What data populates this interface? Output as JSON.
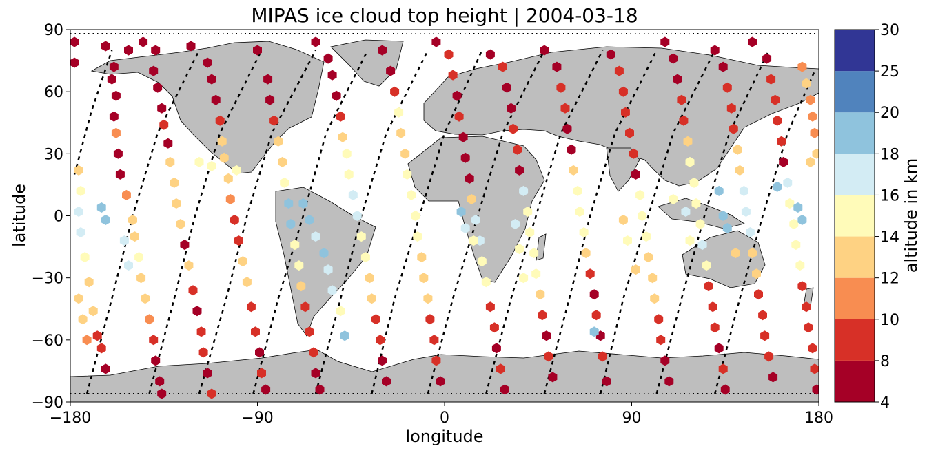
{
  "chart_data": {
    "type": "scatter",
    "title": "MIPAS ice cloud top height | 2004-03-18",
    "xlabel": "longitude",
    "ylabel": "latitude",
    "xlim": [
      -180,
      180
    ],
    "ylim": [
      -90,
      90
    ],
    "xticks": [
      -180,
      -90,
      0,
      90,
      180
    ],
    "xtick_labels": [
      "−180",
      "−90",
      "0",
      "90",
      "180"
    ],
    "yticks": [
      -90,
      -60,
      -30,
      0,
      30,
      60,
      90
    ],
    "ytick_labels": [
      "−90",
      "−60",
      "−30",
      "0",
      "30",
      "60",
      "90"
    ],
    "grid": false,
    "colorbar": {
      "label": "altitude in km",
      "boundaries": [
        4,
        8,
        10,
        12,
        14,
        16,
        18,
        20,
        25,
        30
      ],
      "tick_labels": [
        "4",
        "8",
        "10",
        "12",
        "14",
        "16",
        "18",
        "20",
        "25",
        "30"
      ],
      "colors": [
        "#a50026",
        "#d73027",
        "#f88d51",
        "#fed283",
        "#fffbb9",
        "#d3ecf4",
        "#8fc3dd",
        "#5083bd",
        "#313695"
      ]
    },
    "map_colors": {
      "land": "#bebebe",
      "coast": "#000000"
    },
    "orbit_tracks": [
      [
        [
          -172,
          -86
        ],
        [
          -160,
          -40
        ],
        [
          -150,
          0
        ],
        [
          -138,
          40
        ],
        [
          -118,
          80
        ]
      ],
      [
        [
          -142,
          -86
        ],
        [
          -130,
          -40
        ],
        [
          -120,
          0
        ],
        [
          -108,
          40
        ],
        [
          -88,
          80
        ]
      ],
      [
        [
          -118,
          -86
        ],
        [
          -105,
          -40
        ],
        [
          -95,
          0
        ],
        [
          -83,
          40
        ],
        [
          -62,
          80
        ]
      ],
      [
        [
          -92,
          -86
        ],
        [
          -80,
          -40
        ],
        [
          -68,
          0
        ],
        [
          -57,
          40
        ],
        [
          -37,
          80
        ]
      ],
      [
        [
          -62,
          -86
        ],
        [
          -50,
          -40
        ],
        [
          -40,
          0
        ],
        [
          -28,
          40
        ],
        [
          -8,
          80
        ]
      ],
      [
        [
          -35,
          -86
        ],
        [
          -24,
          -40
        ],
        [
          -12,
          0
        ],
        [
          0,
          40
        ],
        [
          18,
          80
        ]
      ],
      [
        [
          -8,
          -86
        ],
        [
          4,
          -40
        ],
        [
          16,
          0
        ],
        [
          28,
          40
        ],
        [
          48,
          80
        ]
      ],
      [
        [
          20,
          -86
        ],
        [
          32,
          -40
        ],
        [
          44,
          0
        ],
        [
          56,
          40
        ],
        [
          76,
          80
        ]
      ],
      [
        [
          48,
          -86
        ],
        [
          60,
          -40
        ],
        [
          70,
          0
        ],
        [
          82,
          40
        ],
        [
          102,
          80
        ]
      ],
      [
        [
          75,
          -86
        ],
        [
          86,
          -40
        ],
        [
          98,
          0
        ],
        [
          110,
          40
        ],
        [
          130,
          80
        ]
      ],
      [
        [
          102,
          -86
        ],
        [
          114,
          -40
        ],
        [
          125,
          0
        ],
        [
          137,
          40
        ],
        [
          156,
          80
        ]
      ],
      [
        [
          130,
          -86
        ],
        [
          142,
          -40
        ],
        [
          153,
          0
        ],
        [
          165,
          40
        ],
        [
          178,
          70
        ]
      ],
      [
        [
          -178,
          20
        ],
        [
          -170,
          50
        ],
        [
          -160,
          80
        ]
      ]
    ],
    "points": [
      [
        -178,
        74,
        7
      ],
      [
        -178,
        84,
        7
      ],
      [
        -176,
        22,
        12
      ],
      [
        -175,
        12,
        15
      ],
      [
        -176,
        2,
        17
      ],
      [
        -175,
        -8,
        17
      ],
      [
        -173,
        -20,
        15
      ],
      [
        -171,
        -32,
        13
      ],
      [
        -169,
        -46,
        13
      ],
      [
        -167,
        -58,
        9
      ],
      [
        -165,
        -64,
        9
      ],
      [
        -163,
        -74,
        7
      ],
      [
        -176,
        -40,
        12
      ],
      [
        -174,
        -50,
        13
      ],
      [
        -172,
        -60,
        10
      ],
      [
        -160,
        66,
        7
      ],
      [
        -158,
        58,
        7
      ],
      [
        -159,
        48,
        7
      ],
      [
        -158,
        40,
        11
      ],
      [
        -157,
        30,
        7
      ],
      [
        -156,
        20,
        7
      ],
      [
        -153,
        10,
        11
      ],
      [
        -150,
        -2,
        13
      ],
      [
        -149,
        -10,
        13
      ],
      [
        -147,
        -20,
        15
      ],
      [
        -146,
        -30,
        12
      ],
      [
        -144,
        -40,
        12
      ],
      [
        -142,
        -50,
        10
      ],
      [
        -140,
        -60,
        9
      ],
      [
        -139,
        -70,
        7
      ],
      [
        -137,
        -80,
        7
      ],
      [
        -136,
        -86,
        7
      ],
      [
        -165,
        4,
        18
      ],
      [
        -163,
        -2,
        18
      ],
      [
        -154,
        -12,
        17
      ],
      [
        -152,
        -24,
        16
      ],
      [
        -163,
        82,
        7
      ],
      [
        -159,
        72,
        7
      ],
      [
        -140,
        70,
        7
      ],
      [
        -138,
        62,
        7
      ],
      [
        -136,
        52,
        7
      ],
      [
        -135,
        44,
        9
      ],
      [
        -133,
        35,
        7
      ],
      [
        -132,
        26,
        12
      ],
      [
        -130,
        16,
        13
      ],
      [
        -129,
        6,
        13
      ],
      [
        -127,
        -4,
        12
      ],
      [
        -125,
        -14,
        7
      ],
      [
        -123,
        -24,
        12
      ],
      [
        -121,
        -36,
        9
      ],
      [
        -119,
        -46,
        7
      ],
      [
        -117,
        -56,
        9
      ],
      [
        -116,
        -66,
        9
      ],
      [
        -114,
        -76,
        7
      ],
      [
        -112,
        -86,
        9
      ],
      [
        -152,
        80,
        7
      ],
      [
        -145,
        84,
        7
      ],
      [
        -139,
        80,
        7
      ],
      [
        -122,
        82,
        7
      ],
      [
        -114,
        74,
        7
      ],
      [
        -112,
        66,
        7
      ],
      [
        -110,
        56,
        7
      ],
      [
        -108,
        46,
        9
      ],
      [
        -107,
        36,
        12
      ],
      [
        -106,
        28,
        13
      ],
      [
        -104,
        18,
        13
      ],
      [
        -103,
        8,
        11
      ],
      [
        -101,
        -2,
        9
      ],
      [
        -99,
        -12,
        9
      ],
      [
        -97,
        -22,
        12
      ],
      [
        -95,
        -32,
        12
      ],
      [
        -93,
        -44,
        9
      ],
      [
        -91,
        -56,
        9
      ],
      [
        -89,
        -66,
        7
      ],
      [
        -88,
        -76,
        9
      ],
      [
        -86,
        -84,
        7
      ],
      [
        -118,
        26,
        15
      ],
      [
        -112,
        24,
        14
      ],
      [
        -100,
        22,
        14
      ],
      [
        -90,
        80,
        7
      ],
      [
        -85,
        66,
        7
      ],
      [
        -84,
        56,
        7
      ],
      [
        -82,
        46,
        9
      ],
      [
        -80,
        36,
        12
      ],
      [
        -78,
        26,
        12
      ],
      [
        -77,
        16,
        15
      ],
      [
        -75,
        6,
        18
      ],
      [
        -74,
        -4,
        18
      ],
      [
        -72,
        -14,
        15
      ],
      [
        -70,
        -24,
        14
      ],
      [
        -69,
        -34,
        12
      ],
      [
        -67,
        -44,
        9
      ],
      [
        -65,
        -56,
        9
      ],
      [
        -63,
        -66,
        9
      ],
      [
        -62,
        -76,
        7
      ],
      [
        -60,
        -84,
        7
      ],
      [
        -68,
        6,
        18
      ],
      [
        -65,
        -2,
        18
      ],
      [
        -62,
        -10,
        17
      ],
      [
        -58,
        -18,
        18
      ],
      [
        -56,
        -26,
        17
      ],
      [
        -54,
        -36,
        16
      ],
      [
        -50,
        -46,
        14
      ],
      [
        -48,
        -58,
        18
      ],
      [
        -62,
        84,
        7
      ],
      [
        -56,
        76,
        7
      ],
      [
        -54,
        68,
        7
      ],
      [
        -52,
        58,
        7
      ],
      [
        -50,
        48,
        9
      ],
      [
        -49,
        38,
        12
      ],
      [
        -47,
        30,
        14
      ],
      [
        -46,
        20,
        15
      ],
      [
        -44,
        10,
        16
      ],
      [
        -42,
        0,
        16
      ],
      [
        -40,
        -10,
        15
      ],
      [
        -38,
        -20,
        15
      ],
      [
        -36,
        -30,
        12
      ],
      [
        -35,
        -40,
        12
      ],
      [
        -33,
        -50,
        9
      ],
      [
        -31,
        -60,
        9
      ],
      [
        -30,
        -70,
        7
      ],
      [
        -28,
        -80,
        7
      ],
      [
        -30,
        80,
        7
      ],
      [
        -26,
        70,
        7
      ],
      [
        -24,
        60,
        9
      ],
      [
        -22,
        50,
        14
      ],
      [
        -21,
        40,
        13
      ],
      [
        -19,
        30,
        13
      ],
      [
        -18,
        20,
        14
      ],
      [
        -16,
        10,
        15
      ],
      [
        -14,
        0,
        15
      ],
      [
        -13,
        -10,
        14
      ],
      [
        -11,
        -20,
        13
      ],
      [
        -10,
        -30,
        13
      ],
      [
        -8,
        -40,
        12
      ],
      [
        -7,
        -50,
        9
      ],
      [
        -5,
        -60,
        9
      ],
      [
        -4,
        -70,
        9
      ],
      [
        -2,
        -80,
        7
      ],
      [
        -4,
        84,
        7
      ],
      [
        2,
        78,
        9
      ],
      [
        4,
        68,
        9
      ],
      [
        6,
        58,
        7
      ],
      [
        7,
        48,
        9
      ],
      [
        9,
        38,
        7
      ],
      [
        10,
        28,
        7
      ],
      [
        12,
        18,
        7
      ],
      [
        13,
        8,
        12
      ],
      [
        15,
        -2,
        16
      ],
      [
        17,
        -12,
        16
      ],
      [
        18,
        -22,
        14
      ],
      [
        20,
        -32,
        14
      ],
      [
        22,
        -44,
        9
      ],
      [
        24,
        -54,
        9
      ],
      [
        25,
        -64,
        7
      ],
      [
        27,
        -74,
        9
      ],
      [
        29,
        -84,
        7
      ],
      [
        8,
        2,
        18
      ],
      [
        10,
        -6,
        17
      ],
      [
        14,
        -12,
        15
      ],
      [
        22,
        78,
        7
      ],
      [
        28,
        72,
        9
      ],
      [
        30,
        62,
        7
      ],
      [
        32,
        52,
        7
      ],
      [
        33,
        42,
        9
      ],
      [
        35,
        32,
        9
      ],
      [
        36,
        22,
        7
      ],
      [
        38,
        12,
        16
      ],
      [
        40,
        2,
        15
      ],
      [
        41,
        -8,
        15
      ],
      [
        43,
        -18,
        14
      ],
      [
        44,
        -28,
        14
      ],
      [
        46,
        -38,
        12
      ],
      [
        47,
        -48,
        9
      ],
      [
        49,
        -58,
        7
      ],
      [
        50,
        -68,
        9
      ],
      [
        52,
        -78,
        7
      ],
      [
        34,
        -4,
        16
      ],
      [
        36,
        -16,
        15
      ],
      [
        38,
        -30,
        15
      ],
      [
        48,
        80,
        7
      ],
      [
        54,
        72,
        7
      ],
      [
        56,
        62,
        9
      ],
      [
        58,
        52,
        9
      ],
      [
        59,
        42,
        7
      ],
      [
        61,
        32,
        7
      ],
      [
        62,
        22,
        12
      ],
      [
        64,
        12,
        15
      ],
      [
        65,
        2,
        15
      ],
      [
        67,
        -8,
        15
      ],
      [
        68,
        -18,
        12
      ],
      [
        70,
        -28,
        9
      ],
      [
        72,
        -38,
        7
      ],
      [
        73,
        -48,
        9
      ],
      [
        75,
        -58,
        7
      ],
      [
        76,
        -68,
        9
      ],
      [
        78,
        -80,
        7
      ],
      [
        72,
        -56,
        18
      ],
      [
        80,
        78,
        7
      ],
      [
        84,
        70,
        9
      ],
      [
        86,
        60,
        9
      ],
      [
        87,
        50,
        9
      ],
      [
        89,
        40,
        9
      ],
      [
        91,
        30,
        9
      ],
      [
        92,
        20,
        7
      ],
      [
        94,
        10,
        15
      ],
      [
        95,
        0,
        15
      ],
      [
        97,
        -10,
        15
      ],
      [
        98,
        -20,
        13
      ],
      [
        100,
        -30,
        12
      ],
      [
        101,
        -40,
        12
      ],
      [
        103,
        -50,
        9
      ],
      [
        104,
        -60,
        9
      ],
      [
        106,
        -70,
        7
      ],
      [
        108,
        -80,
        7
      ],
      [
        86,
        -2,
        13
      ],
      [
        88,
        -12,
        15
      ],
      [
        92,
        -26,
        13
      ],
      [
        106,
        84,
        7
      ],
      [
        110,
        76,
        7
      ],
      [
        112,
        66,
        7
      ],
      [
        114,
        56,
        9
      ],
      [
        115,
        46,
        9
      ],
      [
        117,
        36,
        12
      ],
      [
        118,
        26,
        14
      ],
      [
        120,
        16,
        14
      ],
      [
        121,
        6,
        15
      ],
      [
        123,
        -4,
        15
      ],
      [
        124,
        -14,
        16
      ],
      [
        126,
        -24,
        15
      ],
      [
        127,
        -34,
        9
      ],
      [
        129,
        -44,
        9
      ],
      [
        130,
        -54,
        9
      ],
      [
        132,
        -64,
        7
      ],
      [
        134,
        -74,
        9
      ],
      [
        135,
        -84,
        7
      ],
      [
        110,
        8,
        15
      ],
      [
        116,
        2,
        16
      ],
      [
        118,
        -12,
        15
      ],
      [
        130,
        80,
        7
      ],
      [
        134,
        72,
        7
      ],
      [
        136,
        62,
        9
      ],
      [
        138,
        52,
        9
      ],
      [
        139,
        42,
        9
      ],
      [
        141,
        32,
        12
      ],
      [
        142,
        22,
        13
      ],
      [
        144,
        12,
        17
      ],
      [
        145,
        2,
        16
      ],
      [
        147,
        -8,
        17
      ],
      [
        148,
        -18,
        13
      ],
      [
        150,
        -28,
        12
      ],
      [
        151,
        -38,
        9
      ],
      [
        153,
        -48,
        9
      ],
      [
        154,
        -58,
        9
      ],
      [
        156,
        -68,
        9
      ],
      [
        158,
        -78,
        7
      ],
      [
        132,
        12,
        18
      ],
      [
        134,
        0,
        18
      ],
      [
        136,
        -6,
        18
      ],
      [
        140,
        -18,
        12
      ],
      [
        148,
        84,
        7
      ],
      [
        155,
        76,
        7
      ],
      [
        157,
        66,
        9
      ],
      [
        159,
        56,
        9
      ],
      [
        160,
        46,
        9
      ],
      [
        162,
        36,
        9
      ],
      [
        163,
        26,
        7
      ],
      [
        165,
        16,
        16
      ],
      [
        166,
        6,
        15
      ],
      [
        168,
        -4,
        14
      ],
      [
        169,
        -14,
        15
      ],
      [
        171,
        -24,
        14
      ],
      [
        172,
        -34,
        9
      ],
      [
        174,
        -44,
        9
      ],
      [
        175,
        -54,
        9
      ],
      [
        177,
        -64,
        9
      ],
      [
        178,
        -74,
        9
      ],
      [
        179,
        -84,
        7
      ],
      [
        160,
        14,
        18
      ],
      [
        170,
        4,
        18
      ],
      [
        172,
        -2,
        18
      ],
      [
        172,
        72,
        10
      ],
      [
        174,
        64,
        12
      ],
      [
        176,
        56,
        10
      ],
      [
        177,
        48,
        11
      ],
      [
        178,
        40,
        11
      ],
      [
        179,
        30,
        12
      ],
      [
        176,
        26,
        12
      ]
    ]
  }
}
